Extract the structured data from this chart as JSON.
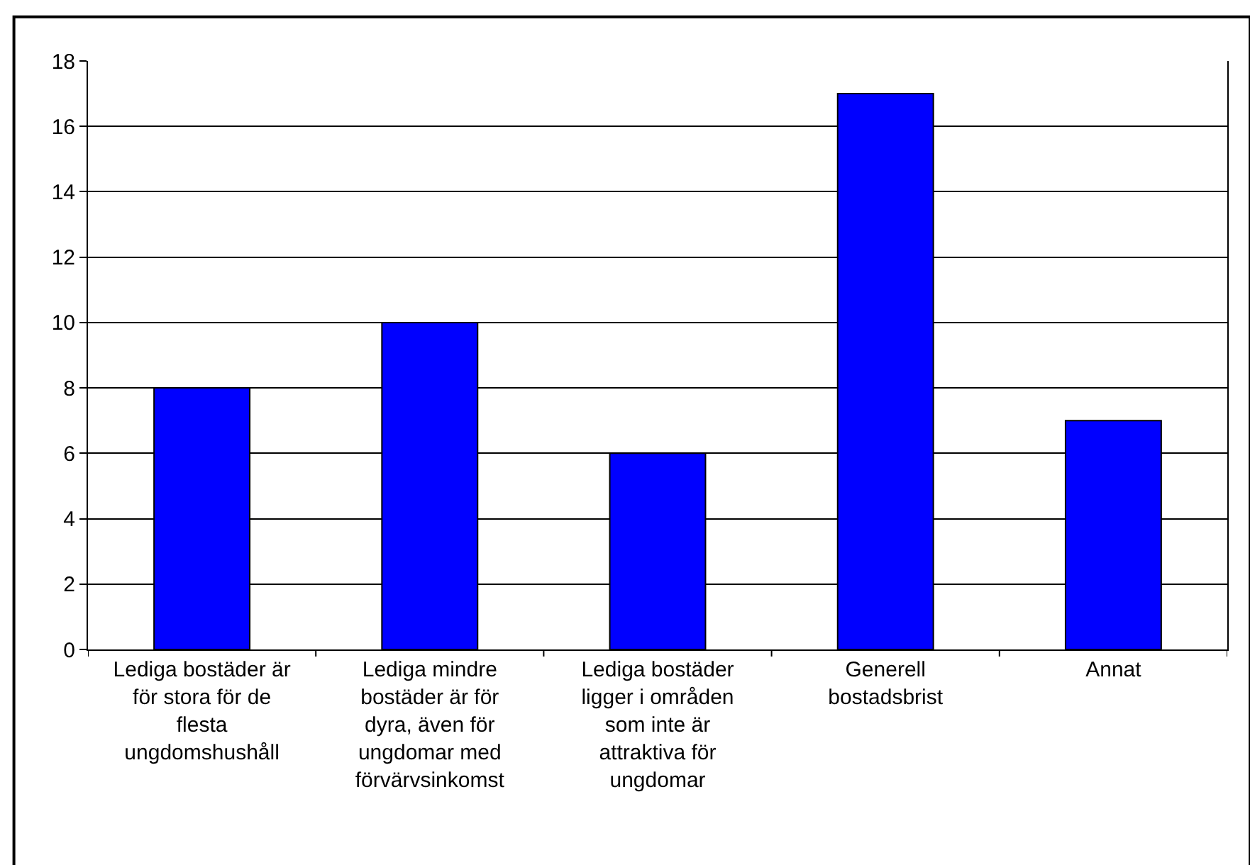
{
  "chart_data": {
    "type": "bar",
    "categories": [
      "Lediga bostäder är för stora för de flesta ungdomshushåll",
      "Lediga mindre bostäder är för dyra, även för ungdomar med förvärvsinkomst",
      "Lediga bostäder ligger i områden som inte är attraktiva för ungdomar",
      "Generell bostadsbrist",
      "Annat"
    ],
    "values": [
      8,
      10,
      6,
      17,
      7
    ],
    "color": "#0000ff",
    "ylim": [
      0,
      18
    ],
    "yticks": [
      0,
      2,
      4,
      6,
      8,
      10,
      12,
      14,
      16,
      18
    ],
    "grid": "y"
  }
}
